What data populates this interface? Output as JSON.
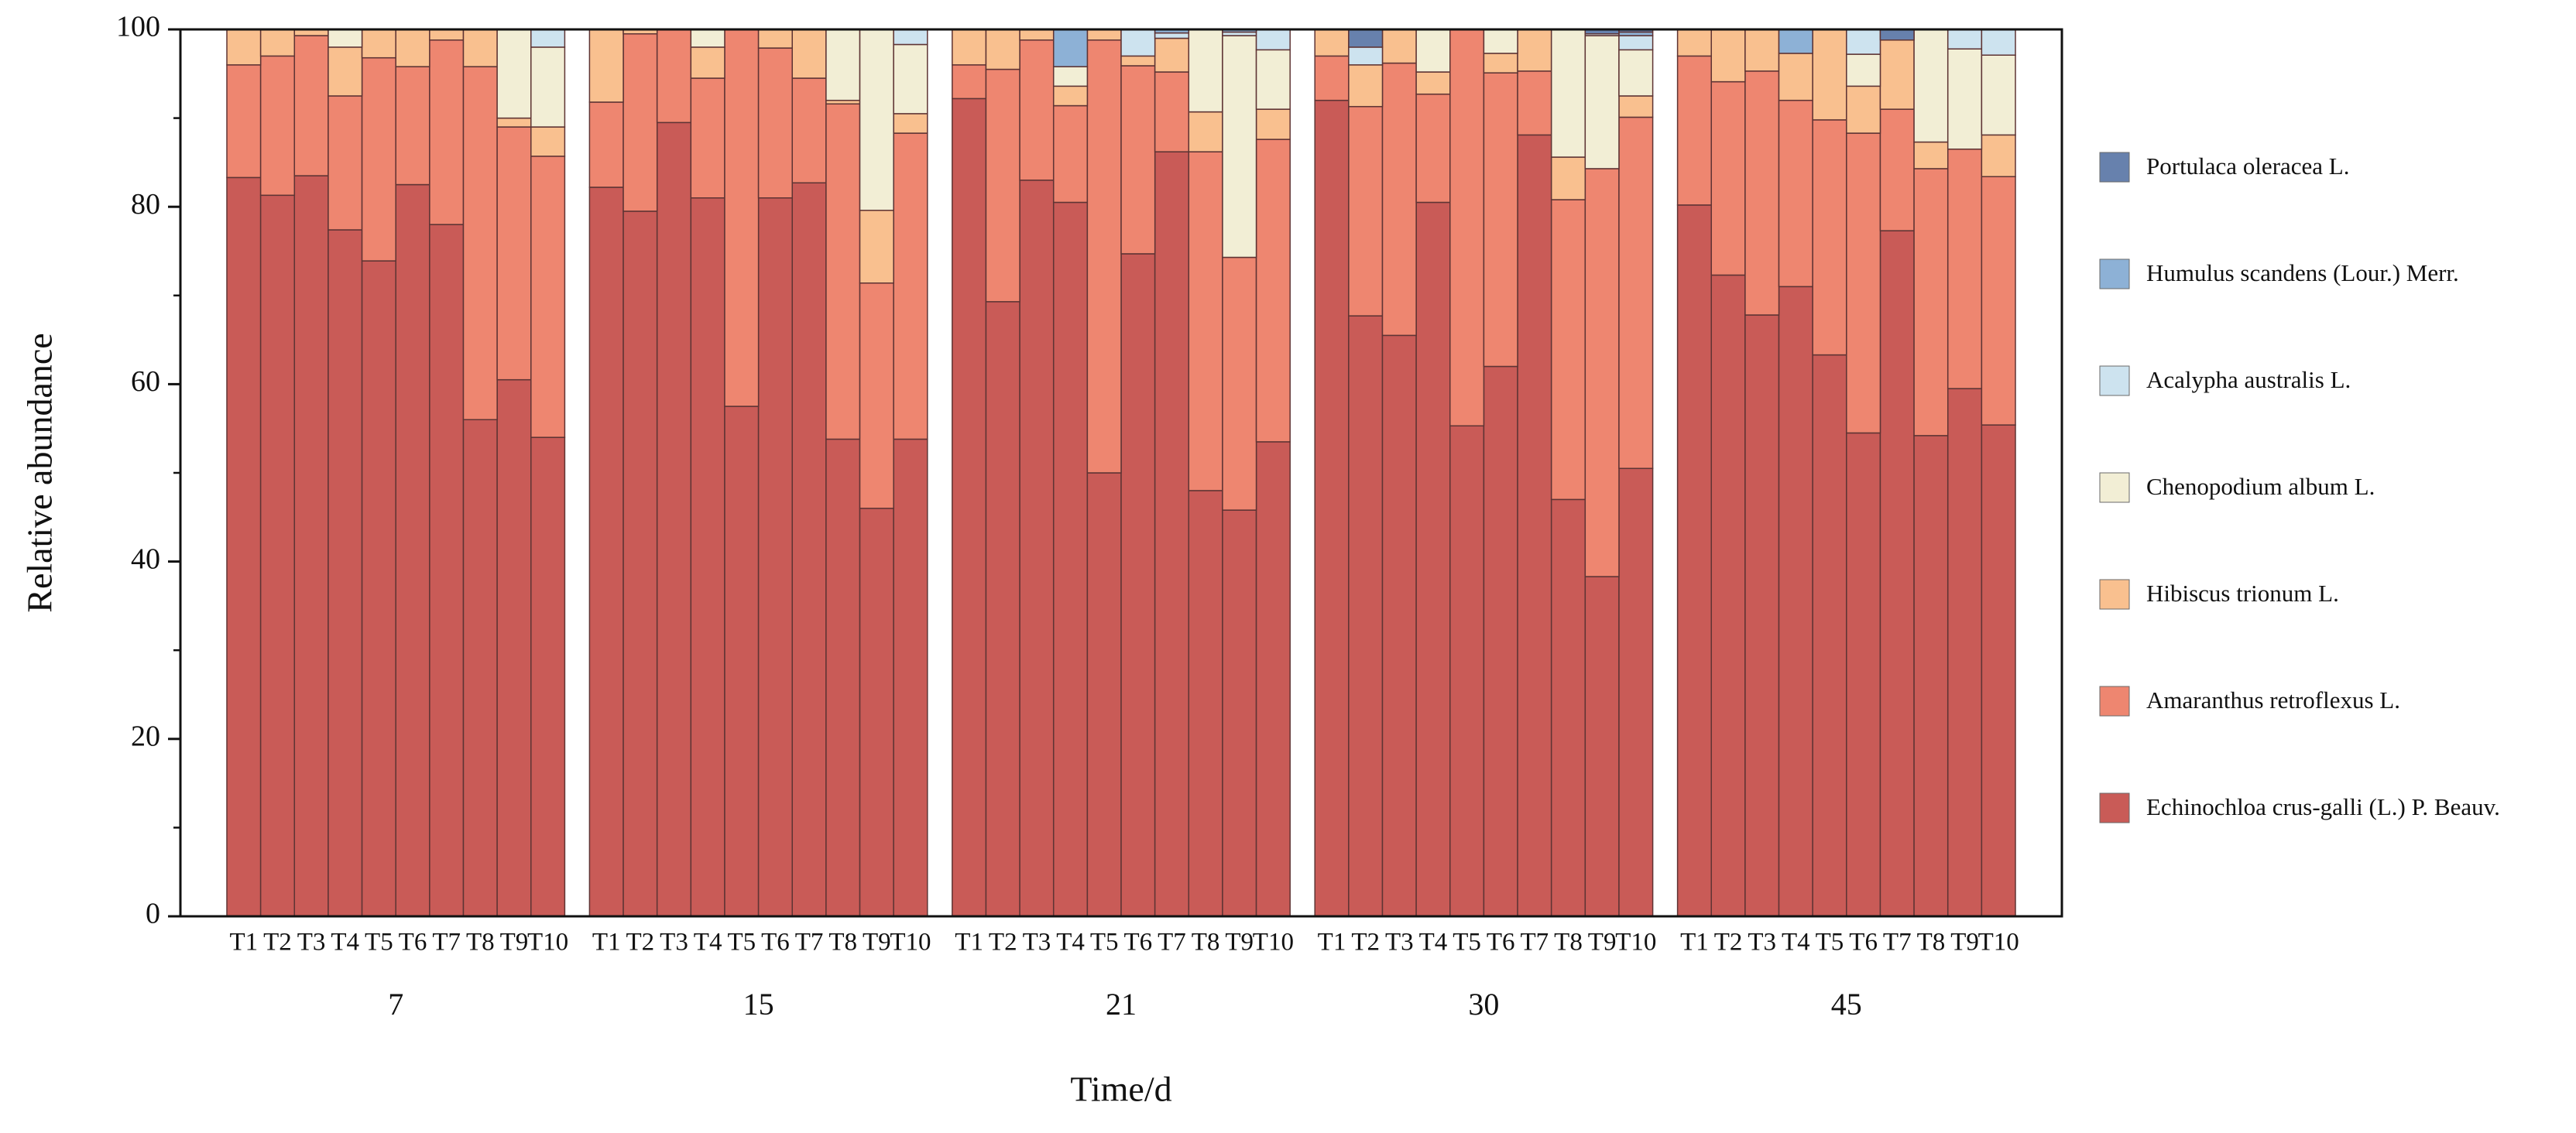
{
  "chart_data": {
    "type": "stacked-bar",
    "y_label": "Relative abundance",
    "x_label": "Time/d",
    "x_groups": [
      "7",
      "15",
      "21",
      "30",
      "45"
    ],
    "categories": [
      "T1",
      "T2",
      "T3",
      "T4",
      "T5",
      "T6",
      "T7",
      "T8",
      "T9",
      "T10",
      "T1",
      "T2",
      "T3",
      "T4",
      "T5",
      "T6",
      "T7",
      "T8",
      "T9",
      "T10",
      "T1",
      "T2",
      "T3",
      "T4",
      "T5",
      "T6",
      "T7",
      "T8",
      "T9",
      "T10",
      "T1",
      "T2",
      "T3",
      "T4",
      "T5",
      "T6",
      "T7",
      "T8",
      "T9",
      "T10",
      "T1",
      "T2",
      "T3",
      "T4",
      "T5",
      "T6",
      "T7",
      "T8",
      "T9",
      "T10"
    ],
    "ylim": [
      0,
      100
    ],
    "yticks": [
      0,
      20,
      40,
      60,
      80,
      100
    ],
    "minor_yticks": [
      10,
      30,
      50,
      70,
      90
    ],
    "series": [
      {
        "name": "Echinochloa crus-galli (L.) P. Beauv.",
        "color": "#c95b57",
        "values": [
          83.3,
          81.3,
          83.5,
          77.4,
          73.9,
          82.5,
          78,
          56,
          60.5,
          54,
          82.2,
          79.5,
          89.5,
          81,
          57.5,
          81,
          82.7,
          53.8,
          46,
          53.8,
          92.2,
          69.3,
          83,
          80.5,
          50,
          74.7,
          86.2,
          48,
          45.8,
          53.5,
          92,
          67.7,
          65.5,
          80.5,
          55.3,
          62,
          88.1,
          47,
          38.3,
          50.5,
          80.2,
          72.3,
          67.8,
          71,
          63.3,
          54.5,
          77.3,
          54.2,
          59.5,
          55.4
        ]
      },
      {
        "name": "Amaranthus retroflexus L.",
        "color": "#ee8670",
        "values": [
          12.7,
          15.7,
          15.8,
          15.1,
          22.9,
          13.3,
          20.8,
          39.8,
          28.5,
          31.7,
          9.6,
          20,
          10.5,
          13.5,
          42.5,
          16.9,
          11.8,
          37.8,
          25.4,
          34.5,
          3.8,
          26.2,
          15.8,
          10.9,
          48.8,
          21.2,
          9,
          38.2,
          28.5,
          34.1,
          5,
          23.6,
          30.7,
          12.2,
          44.7,
          33.1,
          7.2,
          33.8,
          46,
          39.6,
          16.8,
          21.8,
          27.5,
          21,
          26.5,
          33.8,
          13.7,
          30.1,
          27,
          28
        ]
      },
      {
        "name": "Hibiscus trionum L.",
        "color": "#f9c08f",
        "values": [
          4,
          3,
          0.7,
          5.5,
          3.2,
          4.2,
          1.2,
          4.2,
          1,
          3.3,
          8.2,
          0.5,
          0,
          3.5,
          0,
          2.1,
          5.5,
          0.4,
          8.2,
          2.2,
          4,
          4.5,
          1.2,
          2.2,
          1.2,
          1.1,
          3.8,
          4.5,
          0,
          3.4,
          3,
          4.7,
          3.8,
          2.5,
          0,
          2.2,
          4.7,
          4.8,
          0,
          2.4,
          3,
          5.9,
          4.7,
          5.3,
          10.2,
          5.3,
          7.8,
          3,
          0,
          4.7
        ]
      },
      {
        "name": "Chenopodium album L.",
        "color": "#f2eed5",
        "values": [
          0,
          0,
          0,
          2,
          0,
          0,
          0,
          0,
          10,
          9,
          0,
          0,
          0,
          2,
          0,
          0,
          0,
          8,
          20.4,
          7.8,
          0,
          0,
          0,
          2.2,
          0,
          0,
          0,
          9.3,
          25,
          6.7,
          0,
          0,
          0,
          4.8,
          0,
          2.7,
          0,
          14.4,
          15,
          5.2,
          0,
          0,
          0,
          0,
          0,
          3.6,
          0,
          12.7,
          11.3,
          9
        ]
      },
      {
        "name": "Acalypha australis L.",
        "color": "#cde3ef",
        "values": [
          0,
          0,
          0,
          0,
          0,
          0,
          0,
          0,
          0,
          2,
          0,
          0,
          0,
          0,
          0,
          0,
          0,
          0,
          0,
          1.7,
          0,
          0,
          0,
          0,
          0,
          3,
          0.6,
          0,
          0.4,
          2.3,
          0,
          2,
          0,
          0,
          0,
          0,
          0,
          0,
          0.2,
          1.6,
          0,
          0,
          0,
          0,
          0,
          2.8,
          0,
          0,
          2.2,
          2.9
        ]
      },
      {
        "name": "Humulus scandens (Lour.) Merr.",
        "color": "#8db1d6",
        "values": [
          0,
          0,
          0,
          0,
          0,
          0,
          0,
          0,
          0,
          0,
          0,
          0,
          0,
          0,
          0,
          0,
          0,
          0,
          0,
          0,
          0,
          0,
          0,
          4.2,
          0,
          0,
          0.4,
          0,
          0.3,
          0,
          0,
          0,
          0,
          0,
          0,
          0,
          0,
          0,
          0,
          0.4,
          0,
          0,
          0,
          2.7,
          0,
          0,
          0,
          0,
          0,
          0
        ]
      },
      {
        "name": "Portulaca oleracea L.",
        "color": "#6781ad",
        "values": [
          0,
          0,
          0,
          0,
          0,
          0,
          0,
          0,
          0,
          0,
          0,
          0,
          0,
          0,
          0,
          0,
          0,
          0,
          0,
          0,
          0,
          0,
          0,
          0,
          0,
          0,
          0,
          0,
          0,
          0,
          0,
          2,
          0,
          0,
          0,
          0,
          0,
          0,
          0.5,
          0.3,
          0,
          0,
          0,
          0,
          0,
          0,
          1.2,
          0,
          0,
          0
        ]
      }
    ]
  }
}
